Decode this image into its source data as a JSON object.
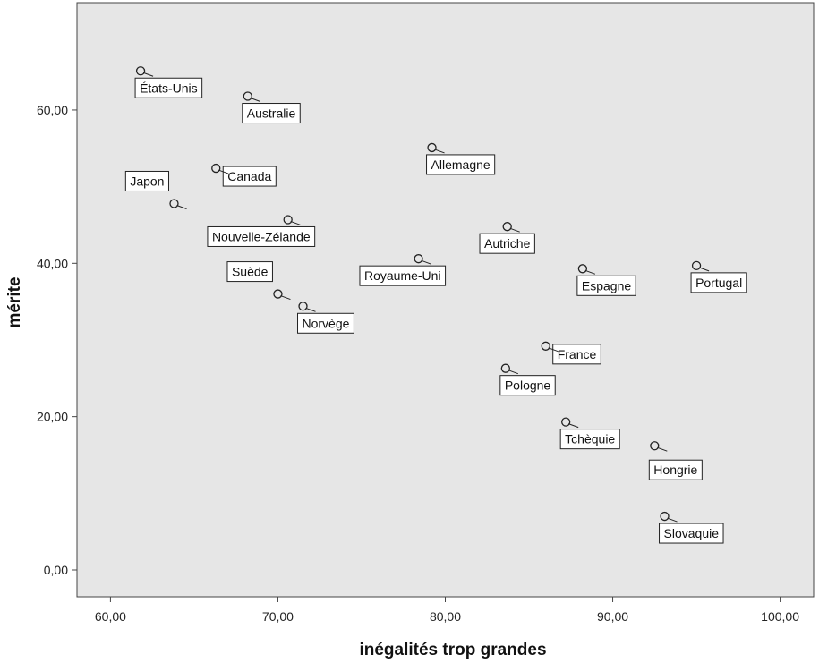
{
  "chart_data": {
    "type": "scatter",
    "xlabel": "inégalités trop grandes",
    "ylabel": "mérite",
    "xlim": [
      58,
      102
    ],
    "ylim": [
      -3.5,
      74
    ],
    "x_ticks": [
      {
        "value": 60,
        "label": "60,00"
      },
      {
        "value": 70,
        "label": "70,00"
      },
      {
        "value": 80,
        "label": "80,00"
      },
      {
        "value": 90,
        "label": "90,00"
      },
      {
        "value": 100,
        "label": "100,00"
      }
    ],
    "y_ticks": [
      {
        "value": 0,
        "label": "0,00"
      },
      {
        "value": 20,
        "label": "20,00"
      },
      {
        "value": 40,
        "label": "40,00"
      },
      {
        "value": 60,
        "label": "60,00"
      }
    ],
    "grid": false,
    "colors": {
      "plot_background": "#e6e6e6",
      "point": "#222222",
      "label_box": "#ffffff"
    },
    "points": [
      {
        "label": "États-Unis",
        "x": 61.8,
        "y": 65.1
      },
      {
        "label": "Australie",
        "x": 68.2,
        "y": 61.8
      },
      {
        "label": "Canada",
        "x": 66.3,
        "y": 52.4
      },
      {
        "label": "Japon",
        "x": 63.8,
        "y": 47.8
      },
      {
        "label": "Nouvelle-Zélande",
        "x": 70.6,
        "y": 45.7
      },
      {
        "label": "Suède",
        "x": 70.0,
        "y": 36.0
      },
      {
        "label": "Norvège",
        "x": 71.5,
        "y": 34.4
      },
      {
        "label": "Allemagne",
        "x": 79.2,
        "y": 55.1
      },
      {
        "label": "Autriche",
        "x": 83.7,
        "y": 44.8
      },
      {
        "label": "Royaume-Uni",
        "x": 78.4,
        "y": 40.6
      },
      {
        "label": "Espagne",
        "x": 88.2,
        "y": 39.3
      },
      {
        "label": "Portugal",
        "x": 95.0,
        "y": 39.7
      },
      {
        "label": "France",
        "x": 86.0,
        "y": 29.2
      },
      {
        "label": "Pologne",
        "x": 83.6,
        "y": 26.3
      },
      {
        "label": "Tchèquie",
        "x": 87.2,
        "y": 19.3
      },
      {
        "label": "Hongrie",
        "x": 92.5,
        "y": 16.2
      },
      {
        "label": "Slovaquie",
        "x": 93.1,
        "y": 7.0
      }
    ]
  }
}
